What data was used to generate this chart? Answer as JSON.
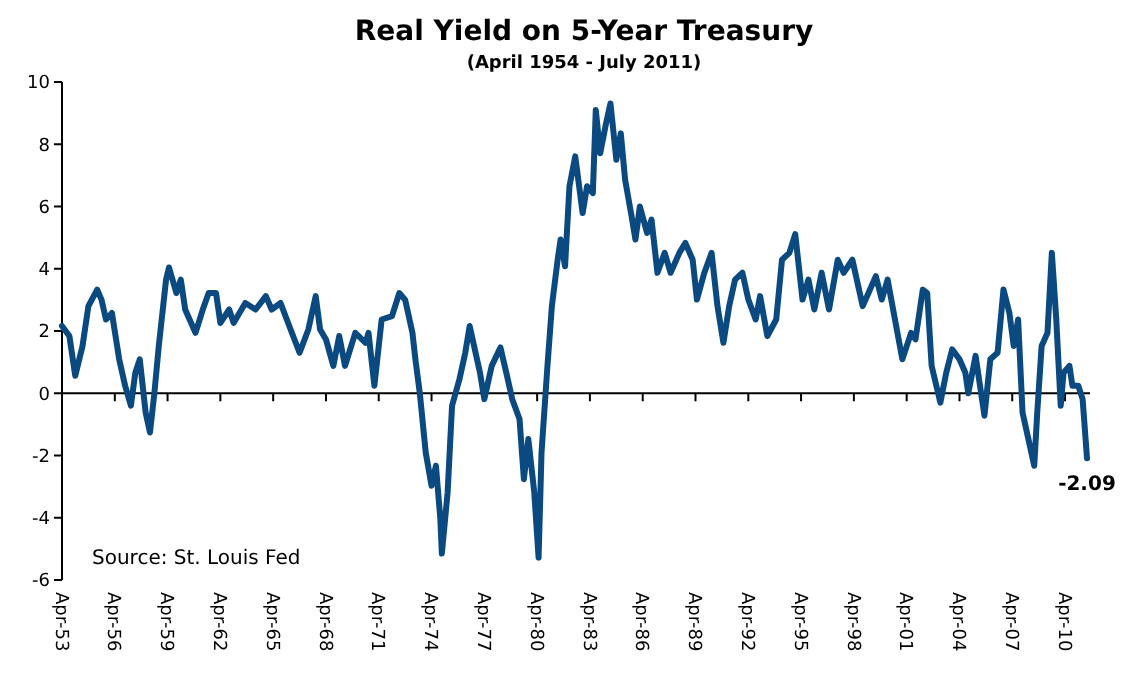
{
  "chart_data": {
    "type": "line",
    "title": "Real Yield on 5-Year Treasury",
    "subtitle": "(April 1954 - July 2011)",
    "annotations": [
      "Source: St. Louis Fed",
      {
        "text": "-2.09",
        "x": "2011-07",
        "y": -2.09
      }
    ],
    "x": [
      "1953-04",
      "1953-09",
      "1954-01",
      "1954-06",
      "1954-10",
      "1955-04",
      "1955-07",
      "1955-10",
      "1956-02",
      "1956-07",
      "1956-11",
      "1957-03",
      "1957-06",
      "1957-09",
      "1958-01",
      "1958-04",
      "1958-07",
      "1958-10",
      "1959-03",
      "1959-05",
      "1959-10",
      "1960-01",
      "1960-04",
      "1960-11",
      "1961-04",
      "1961-08",
      "1962-01",
      "1962-04",
      "1962-10",
      "1963-01",
      "1963-09",
      "1964-04",
      "1964-11",
      "1965-03",
      "1965-09",
      "1966-03",
      "1966-10",
      "1967-04",
      "1967-09",
      "1967-12",
      "1968-04",
      "1968-09",
      "1969-01",
      "1969-05",
      "1969-12",
      "1970-07",
      "1970-09",
      "1971-01",
      "1971-06",
      "1972-01",
      "1972-06",
      "1972-10",
      "1973-03",
      "1973-05",
      "1973-08",
      "1973-12",
      "1974-04",
      "1974-07",
      "1974-10",
      "1974-11",
      "1975-03",
      "1975-06",
      "1975-11",
      "1976-03",
      "1976-06",
      "1976-10",
      "1977-01",
      "1977-04",
      "1977-09",
      "1978-03",
      "1978-07",
      "1978-11",
      "1979-04",
      "1979-07",
      "1979-10",
      "1980-02",
      "1980-05",
      "1980-07",
      "1980-11",
      "1981-02",
      "1981-06",
      "1981-08",
      "1981-11",
      "1982-02",
      "1982-06",
      "1982-11",
      "1983-02",
      "1983-06",
      "1983-08",
      "1983-11",
      "1984-03",
      "1984-06",
      "1984-10",
      "1985-01",
      "1985-04",
      "1985-08",
      "1985-11",
      "1986-02",
      "1986-07",
      "1986-10",
      "1987-02",
      "1987-07",
      "1987-11",
      "1988-05",
      "1988-09",
      "1989-02",
      "1989-05",
      "1989-10",
      "1990-03",
      "1990-07",
      "1990-11",
      "1991-03",
      "1991-07",
      "1991-12",
      "1992-04",
      "1992-09",
      "1992-12",
      "1993-05",
      "1993-11",
      "1994-03",
      "1994-08",
      "1994-12",
      "1995-05",
      "1995-09",
      "1996-01",
      "1996-06",
      "1996-11",
      "1997-05",
      "1997-09",
      "1998-03",
      "1998-10",
      "1999-07",
      "1999-11",
      "2000-03",
      "2000-08",
      "2001-01",
      "2001-07",
      "2001-10",
      "2002-03",
      "2002-06",
      "2002-09",
      "2003-03",
      "2003-07",
      "2003-11",
      "2004-04",
      "2004-08",
      "2004-10",
      "2005-03",
      "2005-09",
      "2006-01",
      "2006-06",
      "2006-10",
      "2007-02",
      "2007-05",
      "2007-08",
      "2007-11",
      "2008-03",
      "2008-07",
      "2008-09",
      "2008-12",
      "2009-04",
      "2009-07",
      "2009-10",
      "2010-01",
      "2010-03",
      "2010-07",
      "2010-09",
      "2011-01",
      "2011-04",
      "2011-07"
    ],
    "series": [
      {
        "color": "#0b4a80",
        "values": [
          2.16,
          1.84,
          0.56,
          1.52,
          2.8,
          3.33,
          3.0,
          2.37,
          2.58,
          1.09,
          0.24,
          -0.4,
          0.66,
          1.09,
          -0.62,
          -1.26,
          0,
          1.52,
          3.65,
          4.04,
          3.22,
          3.65,
          2.69,
          1.94,
          2.69,
          3.22,
          3.22,
          2.26,
          2.69,
          2.26,
          2.9,
          2.69,
          3.12,
          2.69,
          2.9,
          2.16,
          1.3,
          2.05,
          3.12,
          2.05,
          1.73,
          0.88,
          1.84,
          0.88,
          1.94,
          1.62,
          1.94,
          0.24,
          2.37,
          2.48,
          3.22,
          3.0,
          1.94,
          1.09,
          0,
          -1.9,
          -2.97,
          -2.33,
          -4.04,
          -5.15,
          -3.18,
          -0.4,
          0.45,
          1.3,
          2.16,
          1.3,
          0.66,
          -0.19,
          0.88,
          1.47,
          0.66,
          -0.19,
          -0.83,
          -2.76,
          -1.47,
          -3.18,
          -5.28,
          -1.9,
          0.88,
          2.8,
          4.29,
          4.94,
          4.08,
          6.65,
          7.61,
          5.79,
          6.65,
          6.43,
          9.1,
          7.71,
          8.67,
          9.31,
          7.5,
          8.35,
          6.86,
          5.79,
          4.94,
          6.0,
          5.15,
          5.58,
          3.87,
          4.51,
          3.87,
          4.51,
          4.83,
          4.29,
          3.01,
          3.87,
          4.51,
          2.8,
          1.62,
          2.8,
          3.65,
          3.87,
          3.01,
          2.37,
          3.12,
          1.84,
          2.37,
          4.29,
          4.51,
          5.11,
          3.01,
          3.65,
          2.69,
          3.87,
          2.69,
          4.29,
          3.87,
          4.29,
          2.8,
          3.76,
          3.01,
          3.65,
          2.37,
          1.09,
          1.94,
          1.73,
          3.33,
          3.22,
          0.88,
          -0.3,
          0.66,
          1.41,
          1.09,
          0.66,
          0,
          1.2,
          -0.72,
          1.09,
          1.3,
          3.33,
          2.58,
          1.52,
          2.37,
          -0.62,
          -1.47,
          -2.33,
          -0.62,
          1.52,
          1.94,
          4.51,
          2.37,
          -0.4,
          0.66,
          0.88,
          0.24,
          0.24,
          -0.19,
          -2.09
        ]
      }
    ],
    "xlim": [
      "1953-04",
      "2011-09"
    ],
    "xticks": [
      {
        "value": "1953-04",
        "label": "Apr-53"
      },
      {
        "value": "1956-04",
        "label": "Apr-56"
      },
      {
        "value": "1959-04",
        "label": "Apr-59"
      },
      {
        "value": "1962-04",
        "label": "Apr-62"
      },
      {
        "value": "1965-04",
        "label": "Apr-65"
      },
      {
        "value": "1968-04",
        "label": "Apr-68"
      },
      {
        "value": "1971-04",
        "label": "Apr-71"
      },
      {
        "value": "1974-04",
        "label": "Apr-74"
      },
      {
        "value": "1977-04",
        "label": "Apr-77"
      },
      {
        "value": "1980-04",
        "label": "Apr-80"
      },
      {
        "value": "1983-04",
        "label": "Apr-83"
      },
      {
        "value": "1986-04",
        "label": "Apr-86"
      },
      {
        "value": "1989-04",
        "label": "Apr-89"
      },
      {
        "value": "1992-04",
        "label": "Apr-92"
      },
      {
        "value": "1995-04",
        "label": "Apr-95"
      },
      {
        "value": "1998-04",
        "label": "Apr-98"
      },
      {
        "value": "2001-04",
        "label": "Apr-01"
      },
      {
        "value": "2004-04",
        "label": "Apr-04"
      },
      {
        "value": "2007-04",
        "label": "Apr-07"
      },
      {
        "value": "2010-04",
        "label": "Apr-10"
      }
    ],
    "ylim": [
      -6,
      10
    ],
    "yticks": [
      -6,
      -4,
      -2,
      0,
      2,
      4,
      6,
      8,
      10
    ],
    "ref_lines": [
      {
        "axis": "y",
        "value": 0
      }
    ],
    "grid": false,
    "marker": "none",
    "line_style": "solid"
  }
}
